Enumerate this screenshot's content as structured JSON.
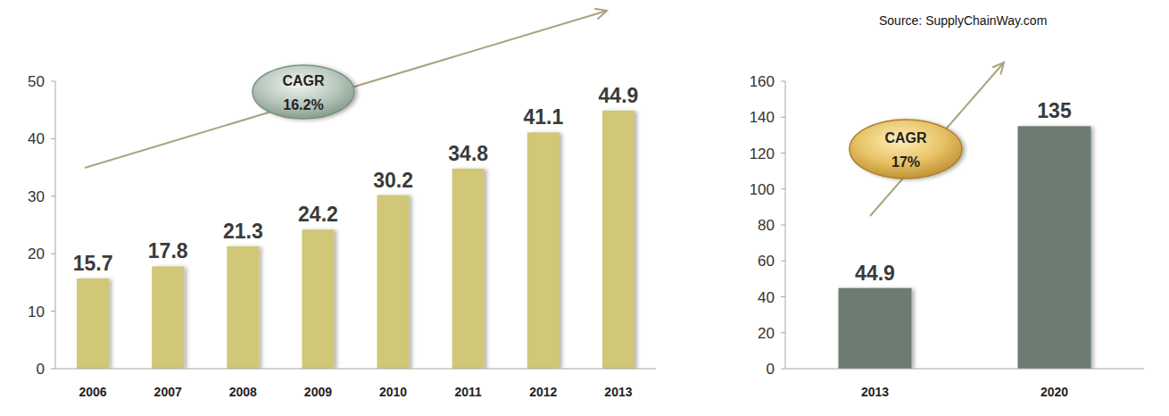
{
  "source": "Source: SupplyChainWay.com",
  "chart_data": [
    {
      "type": "bar",
      "categories": [
        "2006",
        "2007",
        "2008",
        "2009",
        "2010",
        "2011",
        "2012",
        "2013"
      ],
      "values": [
        15.7,
        17.8,
        21.3,
        24.2,
        30.2,
        34.8,
        41.1,
        44.9
      ],
      "color": "#d0c777",
      "ylim": [
        0,
        50
      ],
      "yticks": [
        0,
        10,
        20,
        30,
        40,
        50
      ],
      "grid": false,
      "data_labels": true,
      "annotation": [
        "CAGR",
        "16.2%"
      ]
    },
    {
      "type": "bar",
      "categories": [
        "2013",
        "2020"
      ],
      "values": [
        44.9,
        135
      ],
      "color": "#6c7b72",
      "ylim": [
        0,
        160
      ],
      "yticks": [
        0,
        20,
        40,
        60,
        80,
        100,
        120,
        140,
        160
      ],
      "grid": false,
      "data_labels": true,
      "annotation": [
        "CAGR",
        "17%"
      ]
    }
  ]
}
